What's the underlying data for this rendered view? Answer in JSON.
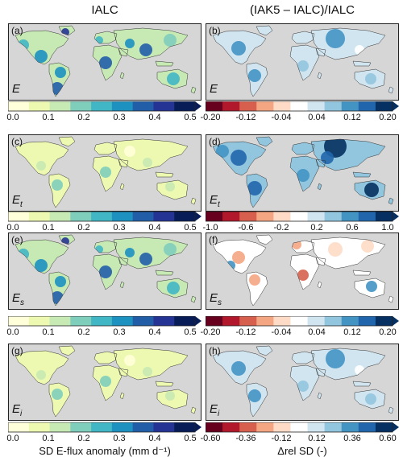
{
  "columns": [
    {
      "title": "IALC"
    },
    {
      "title": "(IAK5 – IALC)/IALC"
    }
  ],
  "rows": [
    {
      "var": "E",
      "sub": "",
      "left_panel": "(a)",
      "right_panel": "(b)",
      "left_ticks": [
        "0.0",
        "0.1",
        "0.2",
        "0.3",
        "0.4",
        "0.5"
      ],
      "right_ticks": [
        "-0.20",
        "-0.12",
        "-0.04",
        "0.04",
        "0.12",
        "0.20"
      ]
    },
    {
      "var": "E",
      "sub": "t",
      "left_panel": "(c)",
      "right_panel": "(d)",
      "left_ticks": [
        "0.0",
        "0.1",
        "0.2",
        "0.3",
        "0.4",
        "0.5"
      ],
      "right_ticks": [
        "-1.0",
        "-0.6",
        "-0.2",
        "0.2",
        "0.6",
        "1.0"
      ]
    },
    {
      "var": "E",
      "sub": "s",
      "left_panel": "(e)",
      "right_panel": "(f)",
      "left_ticks": [
        "0.0",
        "0.1",
        "0.2",
        "0.3",
        "0.4",
        "0.5"
      ],
      "right_ticks": [
        "-0.20",
        "-0.12",
        "-0.04",
        "0.04",
        "0.12",
        "0.20"
      ]
    },
    {
      "var": "E",
      "sub": "i",
      "left_panel": "(g)",
      "right_panel": "(h)",
      "left_ticks": [
        "0.0",
        "0.1",
        "0.2",
        "0.3",
        "0.4",
        "0.5"
      ],
      "right_ticks": [
        "-0.60",
        "-0.36",
        "-0.12",
        "0.12",
        "0.36",
        "0.60"
      ]
    }
  ],
  "axis_titles": {
    "left": "SD E-flux anomaly (mm d⁻¹)",
    "right": "Δrel SD (-)"
  },
  "colormaps": {
    "sequential": [
      "#ffffd9",
      "#edf8b1",
      "#c7e9b4",
      "#7fcdbb",
      "#41b6c4",
      "#1d91c0",
      "#225ea8",
      "#253494",
      "#081d58"
    ],
    "diverging": [
      "#67001f",
      "#b2182b",
      "#d6604d",
      "#f4a582",
      "#fddbc7",
      "#ffffff",
      "#d1e5f0",
      "#92c5de",
      "#4393c3",
      "#2166ac",
      "#053061"
    ]
  },
  "styles": {
    "ocean": "#d6d6d6",
    "land_no_data": "#c8c8c8"
  }
}
